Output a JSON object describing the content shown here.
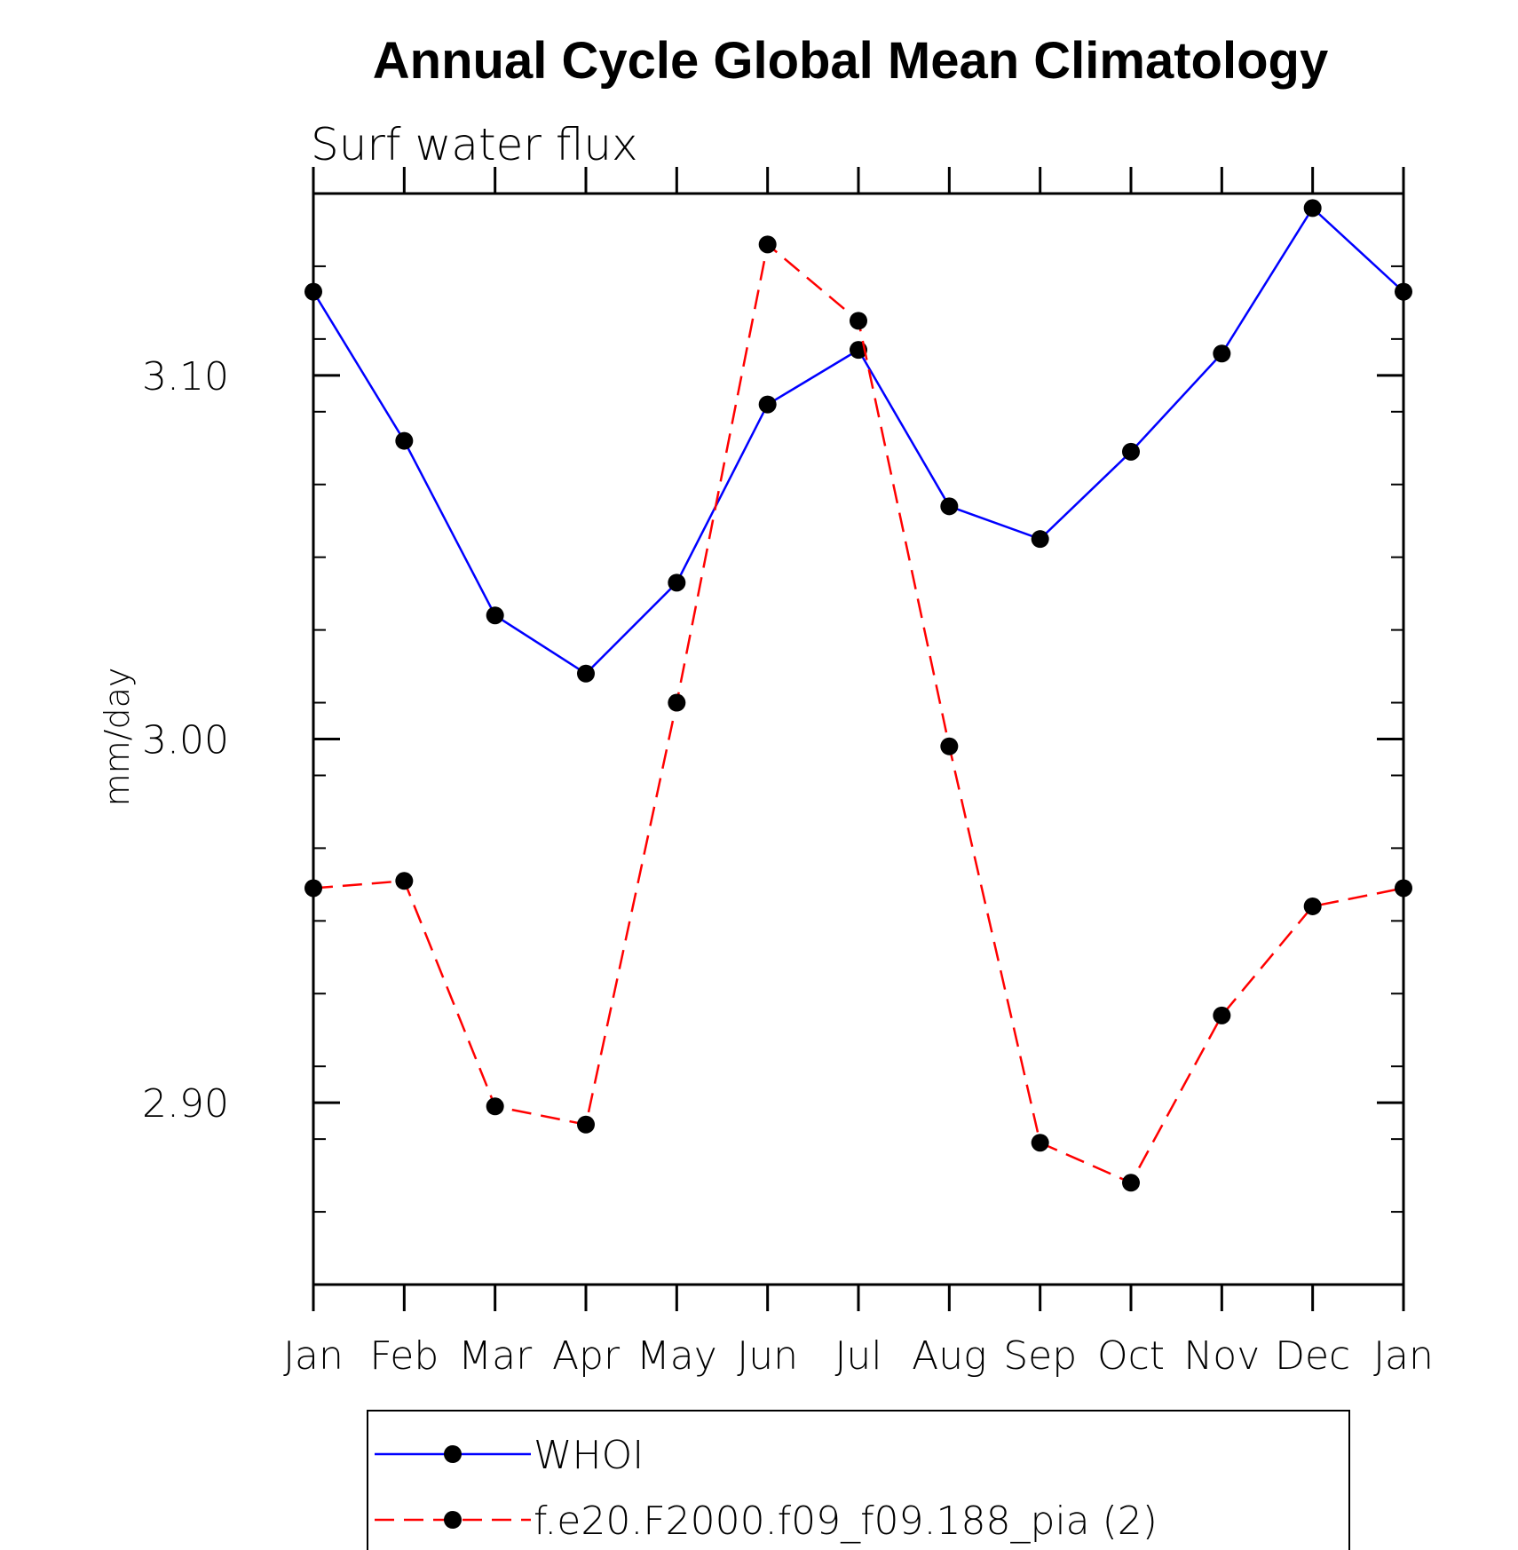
{
  "chart_data": {
    "type": "line",
    "title": "Annual Cycle Global Mean Climatology",
    "subtitle": "Surf water flux",
    "xlabel": "",
    "ylabel": "mm/day",
    "categories": [
      "Jan",
      "Feb",
      "Mar",
      "Apr",
      "May",
      "Jun",
      "Jul",
      "Aug",
      "Sep",
      "Oct",
      "Nov",
      "Dec",
      "Jan"
    ],
    "ylim": [
      2.85,
      3.15
    ],
    "yticks": [
      2.9,
      3.0,
      3.1
    ],
    "ytick_labels": [
      "2.90",
      "3.00",
      "3.10"
    ],
    "yminor_step": 0.02,
    "series": [
      {
        "name": "WHOI",
        "color": "#0000ff",
        "dash": "solid",
        "marker": "circle",
        "values": [
          3.123,
          3.082,
          3.034,
          3.018,
          3.043,
          3.092,
          3.107,
          3.064,
          3.055,
          3.079,
          3.106,
          3.146,
          3.123
        ]
      },
      {
        "name": "f.e20.F2000.f09_f09.188_pia (2)",
        "color": "#ff0000",
        "dash": "dashed",
        "marker": "circle",
        "values": [
          2.959,
          2.961,
          2.899,
          2.894,
          3.01,
          3.136,
          3.115,
          2.998,
          2.889,
          2.878,
          2.924,
          2.954,
          2.959
        ]
      }
    ],
    "grid": false,
    "legend_position": "bottom-center"
  }
}
